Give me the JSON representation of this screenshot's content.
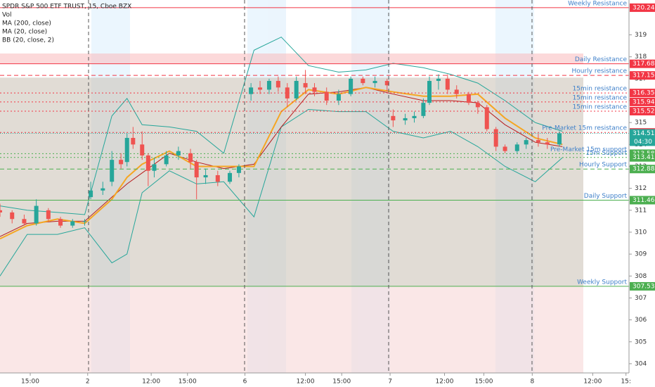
{
  "chart_data": {
    "type": "candlestick",
    "title": "SPDR S&P 500 ETF TRUST, 15, Cboe BZX",
    "indicators": [
      "Vol",
      "MA (200, close)",
      "MA (20, close)",
      "BB (20, close, 2)"
    ],
    "ylim": [
      303.58,
      320.59
    ],
    "yticks": [
      304,
      305,
      306,
      307,
      308,
      309,
      310,
      311,
      312,
      313,
      314,
      315,
      316,
      317,
      318,
      319
    ],
    "xlim": [
      0,
      208
    ],
    "xticks": [
      {
        "value": 10,
        "label": "15:00"
      },
      {
        "value": 29,
        "label": "2"
      },
      {
        "value": 50,
        "label": "12:00"
      },
      {
        "value": 62,
        "label": "15:00"
      },
      {
        "value": 81,
        "label": "6"
      },
      {
        "value": 101,
        "label": "12:00"
      },
      {
        "value": 113,
        "label": "15:00"
      },
      {
        "value": 129,
        "label": "7"
      },
      {
        "value": 147,
        "label": "12:00"
      },
      {
        "value": 160,
        "label": "15:00"
      },
      {
        "value": 176,
        "label": "8"
      },
      {
        "value": 196,
        "label": "12:00"
      },
      {
        "value": 207,
        "label": "15:"
      }
    ],
    "candles": {
      "x": [
        0,
        4,
        8,
        12,
        16,
        20,
        24,
        28,
        30,
        34,
        37,
        40,
        42,
        44,
        47,
        49,
        51,
        55,
        59,
        63,
        65,
        68,
        72,
        76,
        79,
        83,
        86,
        89,
        92,
        95,
        98,
        101,
        104,
        108,
        112,
        116,
        120,
        124,
        128,
        130,
        134,
        137,
        140,
        142,
        145,
        148,
        151,
        155,
        158,
        161,
        164,
        167,
        171,
        174,
        178,
        181,
        185
      ],
      "open": [
        311.0,
        310.9,
        310.6,
        310.4,
        311.0,
        310.6,
        310.3,
        310.5,
        311.6,
        311.9,
        312.3,
        313.3,
        313.2,
        314.3,
        314.0,
        313.5,
        312.8,
        313.1,
        313.5,
        313.6,
        313.2,
        312.5,
        312.6,
        312.3,
        312.7,
        316.3,
        316.6,
        316.5,
        316.9,
        316.6,
        316.1,
        316.8,
        316.6,
        316.4,
        316.0,
        316.3,
        317.0,
        316.8,
        316.9,
        315.3,
        315.1,
        315.2,
        315.3,
        315.9,
        316.9,
        317.0,
        316.5,
        316.3,
        315.9,
        315.7,
        314.7,
        313.9,
        313.7,
        314.0,
        314.2,
        314.1,
        314.0
      ],
      "high": [
        311.3,
        311.0,
        310.8,
        311.5,
        311.1,
        310.7,
        310.6,
        310.6,
        312.3,
        312.3,
        313.7,
        313.6,
        314.5,
        314.8,
        314.6,
        313.6,
        313.4,
        313.7,
        313.9,
        313.8,
        313.3,
        312.9,
        312.8,
        312.8,
        313.1,
        316.8,
        316.9,
        317.0,
        317.1,
        316.8,
        317.1,
        317.4,
        316.8,
        316.6,
        316.5,
        317.1,
        317.1,
        317.1,
        317.0,
        315.6,
        315.4,
        315.5,
        316.1,
        317.1,
        317.2,
        317.2,
        316.7,
        316.4,
        316.0,
        315.8,
        314.8,
        314.0,
        314.1,
        314.3,
        314.5,
        314.3,
        314.6
      ],
      "low": [
        310.7,
        310.4,
        310.3,
        310.3,
        310.5,
        310.2,
        310.2,
        310.3,
        311.5,
        311.7,
        312.1,
        312.9,
        313.0,
        313.8,
        313.3,
        312.1,
        312.5,
        313.0,
        313.3,
        312.9,
        311.5,
        312.2,
        312.1,
        312.2,
        312.5,
        316.0,
        316.3,
        316.3,
        316.4,
        315.7,
        316.0,
        316.3,
        316.2,
        315.8,
        315.8,
        316.2,
        316.7,
        316.6,
        316.4,
        314.8,
        314.9,
        315.0,
        315.2,
        315.8,
        316.5,
        316.3,
        316.1,
        315.8,
        315.4,
        314.6,
        313.7,
        313.6,
        313.6,
        313.8,
        313.9,
        313.8,
        313.9
      ],
      "close": [
        310.9,
        310.6,
        310.4,
        311.2,
        310.6,
        310.3,
        310.5,
        310.5,
        311.9,
        312.0,
        313.3,
        313.1,
        314.3,
        314.0,
        313.5,
        312.8,
        313.1,
        313.5,
        313.7,
        313.2,
        312.5,
        312.6,
        312.3,
        312.7,
        313.0,
        316.6,
        316.5,
        316.9,
        316.6,
        316.1,
        316.9,
        316.6,
        316.4,
        316.0,
        316.3,
        317.0,
        316.8,
        316.9,
        316.7,
        315.1,
        315.2,
        315.3,
        315.9,
        316.9,
        317.0,
        316.5,
        316.3,
        315.9,
        315.7,
        314.7,
        313.9,
        313.7,
        314.0,
        314.2,
        314.1,
        314.0,
        314.51
      ],
      "up_color": "#26a69a",
      "down_color": "#ef5350"
    },
    "overlay_x": [
      0,
      9,
      19,
      28,
      37,
      42,
      47,
      56,
      65,
      74,
      84,
      93,
      102,
      112,
      121,
      130,
      140,
      149,
      158,
      167,
      177,
      186
    ],
    "overlays": [
      {
        "name": "BB upper",
        "color": "#26a69a",
        "values": [
          311.2,
          311.0,
          310.9,
          310.8,
          315.3,
          316.1,
          314.9,
          314.8,
          314.6,
          313.6,
          318.3,
          318.9,
          317.6,
          317.3,
          317.4,
          317.7,
          317.5,
          317.2,
          316.8,
          316.0,
          315.0,
          314.6
        ]
      },
      {
        "name": "BB lower",
        "color": "#26a69a",
        "values": [
          308.0,
          309.9,
          309.9,
          310.2,
          308.6,
          309.0,
          311.8,
          312.8,
          312.2,
          312.3,
          310.7,
          314.8,
          315.6,
          315.5,
          315.5,
          314.6,
          314.3,
          314.6,
          313.9,
          313.0,
          312.3,
          313.4
        ]
      },
      {
        "name": "MA 200",
        "color": "#b71c1c",
        "values": [
          309.8,
          310.4,
          310.5,
          310.5,
          311.6,
          312.2,
          312.7,
          313.6,
          313.2,
          312.9,
          313.1,
          314.8,
          316.3,
          316.4,
          316.6,
          316.3,
          316.0,
          316.0,
          315.9,
          314.9,
          314.1,
          313.9
        ]
      },
      {
        "name": "MA 20",
        "color": "#f5a623",
        "values": [
          309.7,
          310.3,
          310.6,
          310.4,
          311.5,
          312.5,
          313.1,
          313.7,
          313.0,
          313.0,
          313.0,
          315.5,
          316.5,
          316.3,
          316.6,
          316.4,
          316.2,
          316.2,
          316.3,
          315.2,
          314.3,
          314.0
        ]
      }
    ],
    "zones": [
      {
        "from": 317.68,
        "to": 318.15,
        "color": "#f9b9bb"
      },
      {
        "from": 307.53,
        "to": 317.05,
        "color": "#c8bfb2"
      },
      {
        "from": 303.58,
        "to": 307.53,
        "color": "#f6d3d3"
      }
    ],
    "levels": [
      {
        "price": 320.24,
        "label": "Weekly Resistance",
        "color": "#f23645",
        "dash": "solid"
      },
      {
        "price": 317.68,
        "label": "Daily Resistance",
        "color": "#f23645",
        "dash": "solid"
      },
      {
        "price": 317.15,
        "label": "Hourly resistance",
        "color": "#f23645",
        "dash": "dashed"
      },
      {
        "price": 316.35,
        "label": "15min resistance",
        "color": "#f23645",
        "dash": "dotted"
      },
      {
        "price": 315.94,
        "label": "15min resistance",
        "color": "#f23645",
        "dash": "dotted"
      },
      {
        "price": 315.52,
        "label": "15min resistance",
        "color": "#f23645",
        "dash": "dotted"
      },
      {
        "price": 314.55,
        "label": "Pre-Market 15m resistance",
        "color": "#f23645",
        "dash": "dotted"
      },
      {
        "price": 313.58,
        "label": "Pre-Market 15m support",
        "color": "#4caf50",
        "dash": "dotted"
      },
      {
        "price": 313.41,
        "label": "15m Support",
        "color": "#4caf50",
        "dash": "dotted"
      },
      {
        "price": 312.88,
        "label": "Hourly Support",
        "color": "#4caf50",
        "dash": "dashed"
      },
      {
        "price": 311.46,
        "label": "Daily Support",
        "color": "#4caf50",
        "dash": "solid"
      },
      {
        "price": 307.53,
        "label": "Weekly Support",
        "color": "#4caf50",
        "dash": "solid"
      }
    ],
    "last_price": 314.51,
    "last_color": "#26a69a",
    "countdown": "04:30"
  }
}
